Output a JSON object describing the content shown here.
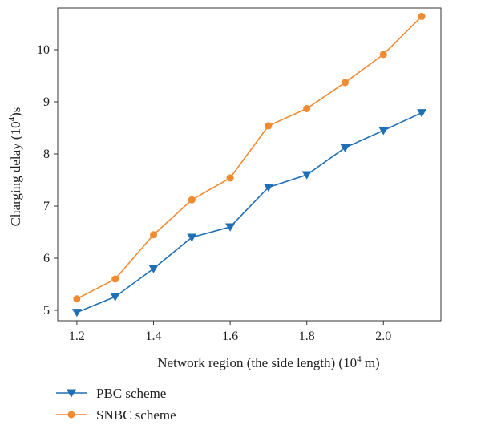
{
  "chart_data": {
    "type": "line",
    "xlabel": "Network region (the side length) (10",
    "xlabel_sup": "4",
    "xlabel_unit": " m)",
    "ylabel": "Charging delay (10",
    "ylabel_sup": "4",
    "ylabel_unit": ")s",
    "x": [
      1.2,
      1.3,
      1.4,
      1.5,
      1.6,
      1.7,
      1.8,
      1.9,
      2.0,
      2.1
    ],
    "xticks": [
      1.2,
      1.4,
      1.6,
      1.8,
      2.0
    ],
    "xtick_labels": [
      "1.2",
      "1.4",
      "1.6",
      "1.8",
      "2.0"
    ],
    "yticks": [
      5,
      6,
      7,
      8,
      9,
      10
    ],
    "ytick_labels": [
      "5",
      "6",
      "7",
      "8",
      "9",
      "10"
    ],
    "xlim": [
      1.15,
      2.15
    ],
    "ylim": [
      4.8,
      10.8
    ],
    "grid": false,
    "legend_position": "bottom-left",
    "series": [
      {
        "name": "PBC scheme",
        "color": "#1f6fb4",
        "marker": "triangle-down",
        "values": [
          4.96,
          5.26,
          5.8,
          6.4,
          6.6,
          7.36,
          7.6,
          8.12,
          8.45,
          8.79
        ]
      },
      {
        "name": "SNBC scheme",
        "color": "#f28a30",
        "marker": "circle",
        "values": [
          5.22,
          5.6,
          6.45,
          7.12,
          7.54,
          8.54,
          8.87,
          9.37,
          9.91,
          10.64
        ]
      }
    ]
  }
}
